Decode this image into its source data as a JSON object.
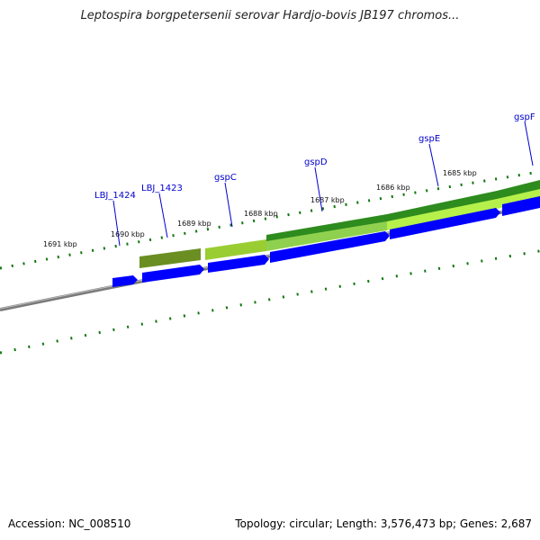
{
  "title": "Leptospira borgpetersenii serovar Hardjo-bovis JB197 chromos...",
  "footer": {
    "accession_label": "Accession",
    "accession": "NC_008510",
    "summary": "Topology: circular; Length: 3,576,473 bp; Genes: 2,687"
  },
  "ticks": [
    {
      "label": "1691 kbp"
    },
    {
      "label": "1690 kbp"
    },
    {
      "label": "1689 kbp"
    },
    {
      "label": "1688 kbp"
    },
    {
      "label": "1687 kbp"
    },
    {
      "label": "1686 kbp"
    },
    {
      "label": "1685 kbp"
    }
  ],
  "genes": [
    {
      "label": "LBJ_1424"
    },
    {
      "label": "LBJ_1423"
    },
    {
      "label": "gspC"
    },
    {
      "label": "gspD"
    },
    {
      "label": "gspE"
    },
    {
      "label": "gspF"
    }
  ],
  "colors": {
    "cds_blue": "#0000ff",
    "track_dark_green": "#2e8b1e",
    "track_olive": "#6b8e23",
    "track_light_green": "#9acd32",
    "backbone_grey": "#808080",
    "tick_green": "#117711",
    "label_blue": "#0000cc"
  }
}
